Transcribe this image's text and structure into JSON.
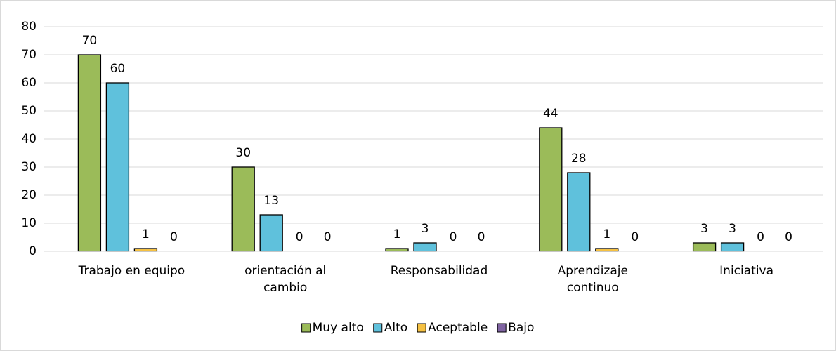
{
  "chart_data": {
    "type": "bar",
    "categories": [
      "Trabajo en equipo",
      "orientación al cambio",
      "Responsabilidad",
      "Aprendizaje continuo",
      "Iniciativa"
    ],
    "series": [
      {
        "name": "Muy alto",
        "color": "#9bbb59",
        "values": [
          70,
          30,
          1,
          44,
          3
        ]
      },
      {
        "name": "Alto",
        "color": "#5fc1dc",
        "values": [
          60,
          13,
          3,
          28,
          3
        ]
      },
      {
        "name": "Aceptable",
        "color": "#f5c143",
        "values": [
          1,
          0,
          0,
          1,
          0
        ]
      },
      {
        "name": "Bajo",
        "color": "#8064a2",
        "values": [
          0,
          0,
          0,
          0,
          0
        ]
      }
    ],
    "ylim": [
      0,
      80
    ],
    "yticks": [
      0,
      10,
      20,
      30,
      40,
      50,
      60,
      70,
      80
    ],
    "grid": true,
    "legend": "bottom"
  }
}
